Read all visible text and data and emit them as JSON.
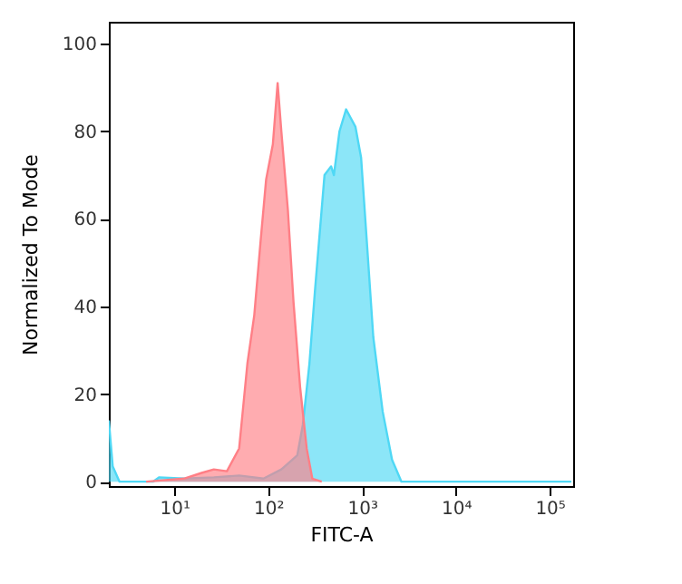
{
  "chart_data": {
    "type": "area",
    "xlabel": "FITC-A",
    "ylabel": "Normalized To Mode",
    "log": "x",
    "xlim": [
      2,
      178000
    ],
    "ylim": [
      -1,
      105
    ],
    "xticks": [
      {
        "value": 10,
        "label": "10¹"
      },
      {
        "value": 100,
        "label": "10²"
      },
      {
        "value": 1000,
        "label": "10³"
      },
      {
        "value": 10000,
        "label": "10⁴"
      },
      {
        "value": 100000,
        "label": "10⁵"
      }
    ],
    "yticks": [
      0,
      20,
      40,
      60,
      80,
      100
    ],
    "grid": false,
    "series": [
      {
        "color": "#4fd8f5",
        "x": [
          2,
          2.2,
          2.6,
          5.9,
          6.9,
          12.6,
          26.3,
          49,
          89,
          138,
          204,
          234,
          275,
          316,
          398,
          468,
          501,
          575,
          676,
          759,
          851,
          977,
          1148,
          1318,
          1660,
          2089,
          2630,
          3311,
          170000
        ],
        "values": [
          14,
          3.5,
          0,
          0,
          1,
          0.7,
          1,
          1.4,
          0.7,
          2.8,
          6,
          13,
          27,
          44,
          70,
          72,
          70,
          80,
          85,
          83,
          81,
          74,
          52,
          33,
          16,
          5,
          0,
          0,
          0
        ]
      },
      {
        "color": "#ff7f86",
        "x": [
          5,
          12.6,
          19.5,
          26.3,
          36.3,
          49,
          60,
          71,
          83,
          95,
          112,
          126,
          138,
          162,
          186,
          219,
          257,
          295,
          372
        ],
        "values": [
          0,
          0.7,
          2,
          2.8,
          2.4,
          7.6,
          27,
          38,
          55,
          69,
          77,
          91,
          80,
          62,
          41,
          21.5,
          7.6,
          0.7,
          0
        ]
      }
    ]
  }
}
